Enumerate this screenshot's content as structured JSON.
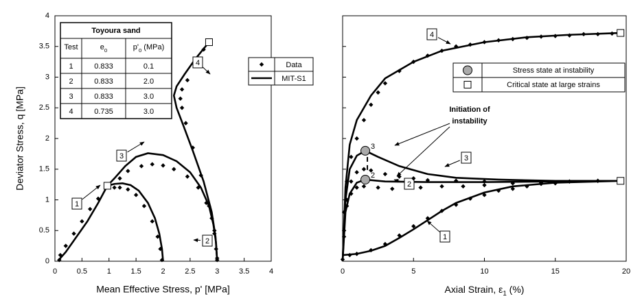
{
  "chart_data": [
    {
      "type": "line",
      "x_label": "Mean Effective Stress, p' [MPa]",
      "y_label": "Deviator Stress, q [MPa]",
      "xlim": [
        0,
        4
      ],
      "ylim": [
        0,
        4
      ],
      "xticks": [
        0,
        0.5,
        1,
        1.5,
        2,
        2.5,
        3,
        3.5,
        4
      ],
      "yticks": [
        0,
        0.5,
        1,
        1.5,
        2,
        2.5,
        3,
        3.5,
        4
      ],
      "series": [
        {
          "name": "1",
          "model": {
            "x": [
              0.08,
              0.1,
              0.2,
              0.4,
              0.6,
              0.8,
              0.97
            ],
            "y": [
              0,
              0.05,
              0.15,
              0.4,
              0.65,
              0.95,
              1.23
            ]
          },
          "data": {
            "x": [
              0.08,
              0.1,
              0.2,
              0.35,
              0.5,
              0.65,
              0.8,
              0.95
            ],
            "y": [
              0.02,
              0.1,
              0.25,
              0.45,
              0.65,
              0.85,
              1.02,
              1.2
            ]
          }
        },
        {
          "name": "2",
          "model": {
            "x": [
              2.0,
              1.98,
              1.93,
              1.85,
              1.72,
              1.55,
              1.4,
              1.25,
              1.1,
              0.97
            ],
            "y": [
              0,
              0.2,
              0.45,
              0.7,
              0.95,
              1.15,
              1.24,
              1.27,
              1.26,
              1.23
            ]
          },
          "data": {
            "x": [
              1.98,
              1.95,
              1.9,
              1.8,
              1.65,
              1.5,
              1.35,
              1.2,
              1.1
            ],
            "y": [
              0.02,
              0.2,
              0.4,
              0.65,
              0.9,
              1.08,
              1.17,
              1.2,
              1.2
            ]
          }
        },
        {
          "name": "3",
          "model": {
            "x": [
              3.0,
              2.98,
              2.93,
              2.85,
              2.7,
              2.5,
              2.25,
              2.0,
              1.72,
              1.5,
              1.3,
              1.1,
              0.97
            ],
            "y": [
              0,
              0.3,
              0.6,
              0.9,
              1.2,
              1.45,
              1.63,
              1.73,
              1.76,
              1.7,
              1.55,
              1.35,
              1.23
            ]
          },
          "data": {
            "x": [
              3.0,
              2.98,
              2.95,
              2.9,
              2.8,
              2.65,
              2.45,
              2.2,
              2.0,
              1.8,
              1.6,
              1.35,
              1.2
            ],
            "y": [
              0.02,
              0.2,
              0.45,
              0.7,
              0.95,
              1.2,
              1.38,
              1.5,
              1.56,
              1.58,
              1.55,
              1.47,
              1.35
            ]
          }
        },
        {
          "name": "4",
          "model": {
            "x": [
              3.0,
              2.97,
              2.9,
              2.75,
              2.55,
              2.38,
              2.25,
              2.2,
              2.25,
              2.4,
              2.6,
              2.85
            ],
            "y": [
              0,
              0.4,
              0.8,
              1.3,
              1.8,
              2.2,
              2.5,
              2.7,
              2.85,
              3.05,
              3.3,
              3.57
            ]
          },
          "data": {
            "x": [
              3.0,
              2.95,
              2.85,
              2.7,
              2.55,
              2.42,
              2.35,
              2.32,
              2.35,
              2.45,
              2.6,
              2.75,
              2.82
            ],
            "y": [
              0.05,
              0.5,
              0.9,
              1.4,
              1.85,
              2.25,
              2.5,
              2.65,
              2.8,
              2.95,
              3.2,
              3.45,
              3.55
            ]
          }
        }
      ],
      "critical_state": {
        "x": [
          0.97,
          2.85
        ],
        "y": [
          1.23,
          3.57
        ]
      },
      "legend": [
        "Data",
        "MIT-S1"
      ],
      "table": {
        "title": "Toyoura sand",
        "header": [
          [
            "Test"
          ],
          [
            "e",
            "0"
          ],
          [
            "p'",
            "0",
            " (MPa)"
          ]
        ],
        "rows": [
          [
            "1",
            "0.833",
            "0.1"
          ],
          [
            "2",
            "0.833",
            "2.0"
          ],
          [
            "3",
            "0.833",
            "3.0"
          ],
          [
            "4",
            "0.735",
            "3.0"
          ]
        ]
      }
    },
    {
      "type": "line",
      "x_label": [
        "Axial Strain, ε",
        "1",
        " (%)"
      ],
      "xlim": [
        0,
        20
      ],
      "ylim": [
        0,
        4
      ],
      "xticks": [
        0,
        5,
        10,
        15,
        20
      ],
      "yticks": [
        0,
        0.5,
        1,
        1.5,
        2,
        2.5,
        3,
        3.5,
        4
      ],
      "series": [
        {
          "name": "1",
          "model": {
            "x": [
              0,
              1,
              2,
              3,
              4,
              5,
              6,
              7,
              8,
              10,
              12,
              15,
              19.6
            ],
            "y": [
              0.1,
              0.12,
              0.17,
              0.25,
              0.38,
              0.52,
              0.67,
              0.82,
              0.95,
              1.12,
              1.22,
              1.28,
              1.31
            ]
          },
          "data": {
            "x": [
              0,
              0.5,
              1,
              2,
              3,
              4,
              5,
              6,
              7,
              8,
              9,
              10,
              11,
              12,
              13,
              14,
              15,
              16,
              18
            ],
            "y": [
              0.03,
              0.1,
              0.12,
              0.18,
              0.28,
              0.42,
              0.57,
              0.7,
              0.82,
              0.92,
              1.02,
              1.08,
              1.15,
              1.18,
              1.22,
              1.26,
              1.27,
              1.3,
              1.31
            ]
          }
        },
        {
          "name": "2",
          "model": {
            "x": [
              0,
              0.2,
              0.5,
              1,
              1.6,
              3,
              6,
              10,
              19.6
            ],
            "y": [
              0,
              0.8,
              1.1,
              1.28,
              1.33,
              1.3,
              1.29,
              1.29,
              1.31
            ]
          },
          "data": {
            "x": [
              0.1,
              0.3,
              0.6,
              1,
              1.5,
              2.5,
              3.5,
              4.5,
              5.5,
              7,
              8.5,
              10,
              12,
              14,
              16,
              18
            ],
            "y": [
              0.4,
              0.9,
              1.1,
              1.2,
              1.22,
              1.2,
              1.18,
              1.2,
              1.2,
              1.22,
              1.22,
              1.24,
              1.27,
              1.28,
              1.3,
              1.31
            ]
          }
        },
        {
          "name": "3",
          "model": {
            "x": [
              0,
              0.2,
              0.5,
              1,
              1.6,
              2.5,
              4,
              6,
              8,
              11,
              15,
              19.6
            ],
            "y": [
              0,
              1.0,
              1.5,
              1.72,
              1.8,
              1.7,
              1.55,
              1.42,
              1.36,
              1.33,
              1.31,
              1.31
            ]
          },
          "data": {
            "x": [
              0.1,
              0.3,
              0.6,
              1,
              1.5,
              2,
              3,
              4,
              5,
              6,
              8,
              10
            ],
            "y": [
              0.5,
              1.0,
              1.3,
              1.45,
              1.5,
              1.48,
              1.42,
              1.38,
              1.35,
              1.32,
              1.31,
              1.3
            ]
          }
        },
        {
          "name": "4",
          "model": {
            "x": [
              0,
              0.2,
              0.5,
              1,
              2,
              3,
              5,
              7,
              10,
              13,
              16,
              19.6
            ],
            "y": [
              0,
              1.2,
              1.9,
              2.3,
              2.7,
              2.98,
              3.25,
              3.43,
              3.57,
              3.65,
              3.69,
              3.72
            ]
          },
          "data": {
            "x": [
              0.1,
              0.3,
              0.6,
              1,
              1.5,
              2,
              2.5,
              3,
              4,
              5,
              6,
              7,
              8,
              9,
              10,
              11,
              12,
              13,
              14,
              15,
              16,
              17,
              18,
              19
            ],
            "y": [
              0.8,
              1.3,
              1.7,
              2.0,
              2.3,
              2.55,
              2.75,
              2.9,
              3.1,
              3.25,
              3.35,
              3.43,
              3.5,
              3.53,
              3.57,
              3.6,
              3.62,
              3.64,
              3.66,
              3.67,
              3.68,
              3.7,
              3.7,
              3.71
            ]
          }
        }
      ],
      "critical_state": {
        "x": [
          19.6,
          19.6
        ],
        "y": [
          1.31,
          3.72
        ]
      },
      "instability": {
        "x": [
          1.6,
          1.6
        ],
        "y": [
          1.8,
          1.33
        ],
        "labels": [
          "3",
          "2"
        ]
      },
      "annotation": [
        "Initiation of",
        "instability"
      ],
      "legend": [
        "Stress state at instability",
        "Critical state at large strains"
      ]
    }
  ]
}
